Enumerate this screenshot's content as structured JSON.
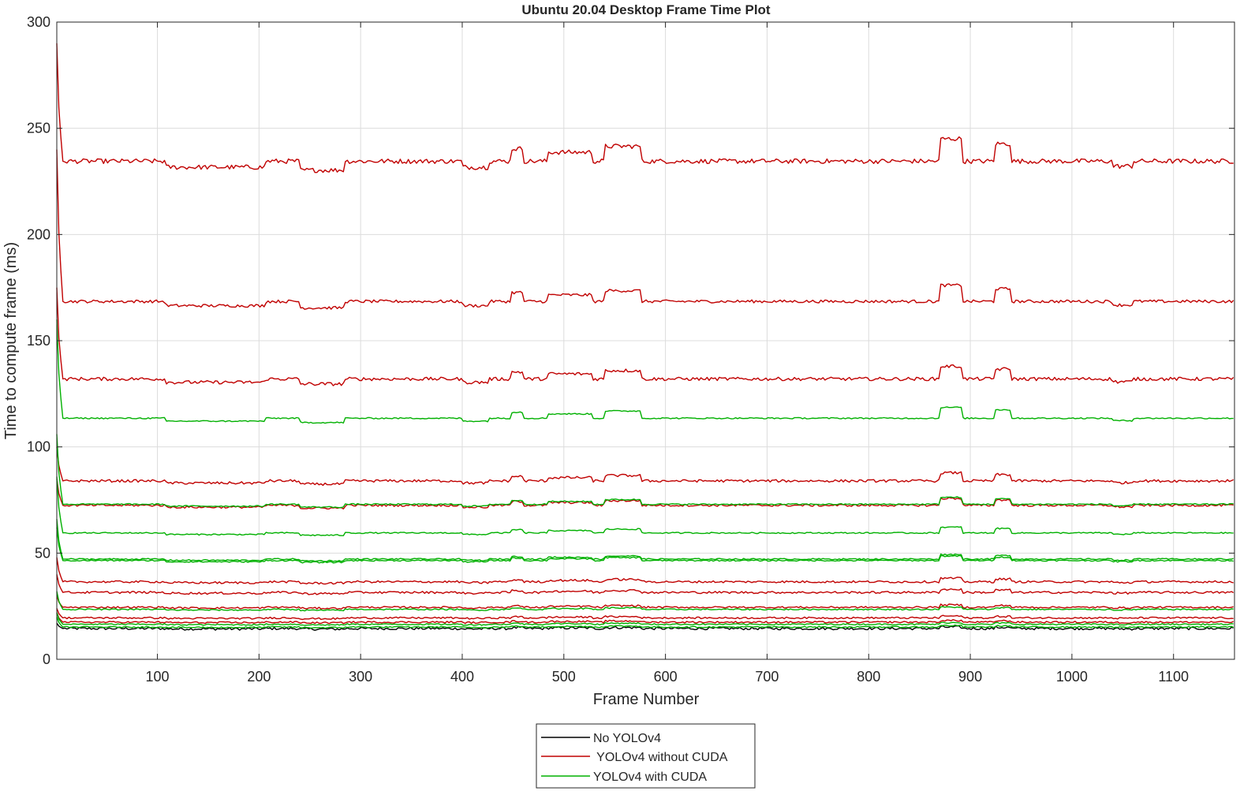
{
  "chart_data": {
    "type": "line",
    "title": "Ubuntu 20.04 Desktop Frame Time Plot",
    "xlabel": "Frame Number",
    "ylabel": "Time to compute frame (ms)",
    "xlim": [
      1,
      1160
    ],
    "ylim": [
      0,
      300
    ],
    "xticks": [
      100,
      200,
      300,
      400,
      500,
      600,
      700,
      800,
      900,
      1000,
      1100
    ],
    "yticks": [
      0,
      50,
      100,
      150,
      200,
      250,
      300
    ],
    "grid": true,
    "legend_position": "bottom-center",
    "legend": [
      {
        "label": "No YOLOv4",
        "color": "#000000"
      },
      {
        "label": " YOLOv4 without CUDA",
        "color": "#C00000"
      },
      {
        "label": "YOLOv4 with CUDA",
        "color": "#00B000"
      }
    ],
    "colors": {
      "none": "#000000",
      "cpu": "#C00000",
      "gpu": "#00B000",
      "grid": "#DCDCDC",
      "axis": "#262626"
    },
    "series": [
      {
        "group": "No YOLOv4",
        "start": 17,
        "steady": 14.5,
        "jitter": 0.6
      },
      {
        "group": " YOLOv4 without CUDA",
        "start": 290,
        "steady": 234.5,
        "jitter": 1.1
      },
      {
        "group": " YOLOv4 without CUDA",
        "start": 240,
        "steady": 168.5,
        "jitter": 0.7
      },
      {
        "group": " YOLOv4 without CUDA",
        "start": 175,
        "steady": 132,
        "jitter": 0.8
      },
      {
        "group": " YOLOv4 without CUDA",
        "start": 100,
        "steady": 84,
        "jitter": 0.6
      },
      {
        "group": " YOLOv4 without CUDA",
        "start": 85,
        "steady": 72.5,
        "jitter": 0.5
      },
      {
        "group": " YOLOv4 without CUDA",
        "start": 48,
        "steady": 36.5,
        "jitter": 0.5
      },
      {
        "group": " YOLOv4 without CUDA",
        "start": 40,
        "steady": 31.5,
        "jitter": 0.5
      },
      {
        "group": " YOLOv4 without CUDA",
        "start": 30,
        "steady": 24.5,
        "jitter": 0.4
      },
      {
        "group": " YOLOv4 without CUDA",
        "start": 24,
        "steady": 19.5,
        "jitter": 0.4
      },
      {
        "group": " YOLOv4 without CUDA",
        "start": 22,
        "steady": 17.5,
        "jitter": 0.4
      },
      {
        "group": "YOLOv4 with CUDA",
        "start": 160,
        "steady": 113.5,
        "jitter": 0.3
      },
      {
        "group": "YOLOv4 with CUDA",
        "start": 106,
        "steady": 73,
        "jitter": 0.3
      },
      {
        "group": "YOLOv4 with CUDA",
        "start": 86,
        "steady": 59.5,
        "jitter": 0.3
      },
      {
        "group": "YOLOv4 with CUDA",
        "start": 66,
        "steady": 47.2,
        "jitter": 0.3
      },
      {
        "group": "YOLOv4 with CUDA",
        "start": 62,
        "steady": 46.5,
        "jitter": 0.3
      },
      {
        "group": "YOLOv4 with CUDA",
        "start": 32,
        "steady": 23.5,
        "jitter": 0.3
      },
      {
        "group": "YOLOv4 with CUDA",
        "start": 22,
        "steady": 16.5,
        "jitter": 0.3
      },
      {
        "group": "YOLOv4 with CUDA",
        "start": 20,
        "steady": 15.2,
        "jitter": 0.3
      }
    ]
  }
}
